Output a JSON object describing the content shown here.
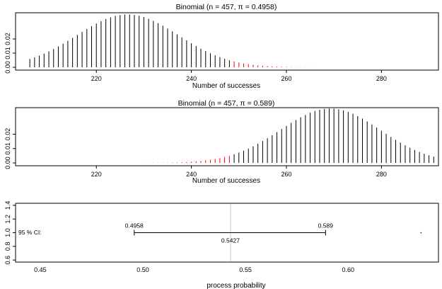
{
  "chart_data": [
    {
      "type": "bar",
      "title": "Binomial (n = 457, π = 0.4958)",
      "n": 457,
      "pi": 0.4958,
      "x_ticks": [
        "220",
        "240",
        "260",
        "280"
      ],
      "x_tick_values": [
        220,
        240,
        260,
        280
      ],
      "y_ticks": [
        "0.00",
        "0.01",
        "0.02"
      ],
      "y_tick_values": [
        0,
        0.01,
        0.02
      ],
      "xlabel": "Number of successes",
      "ylabel": "",
      "xlim": [
        203,
        292
      ],
      "ylim": [
        0,
        0.0385
      ],
      "x_range": [
        206,
        291
      ],
      "highlight_color": "#ff0000",
      "bar_color": "#000000",
      "highlight_rule": "x >= 249"
    },
    {
      "type": "bar",
      "title": "Binomial (n = 457, π = 0.589)",
      "n": 457,
      "pi": 0.589,
      "x_ticks": [
        "220",
        "240",
        "260",
        "280"
      ],
      "x_tick_values": [
        220,
        240,
        260,
        280
      ],
      "y_ticks": [
        "0.00",
        "0.01",
        "0.02"
      ],
      "y_tick_values": [
        0,
        0.01,
        0.02
      ],
      "xlabel": "Number of successes",
      "ylabel": "",
      "xlim": [
        203,
        292
      ],
      "ylim": [
        0,
        0.0385
      ],
      "x_range": [
        206,
        291
      ],
      "highlight_color": "#ff0000",
      "bar_color": "#000000",
      "highlight_rule": "x <= 248"
    },
    {
      "type": "scatter",
      "title": "",
      "row_label": "95 % CI:",
      "ci_lower": 0.4958,
      "ci_upper": 0.589,
      "estimate": 0.5427,
      "lower_label": "0.4958",
      "upper_label": "0.589",
      "estimate_label": "0.5427",
      "stray_point_x": 0.6355,
      "x_ticks": [
        "0.45",
        "0.50",
        "0.55",
        "0.60"
      ],
      "x_tick_values": [
        0.45,
        0.5,
        0.55,
        0.6
      ],
      "y_ticks": [
        "0.6",
        "0.8",
        "1.0",
        "1.2",
        "1.4"
      ],
      "y_tick_values": [
        0.6,
        0.8,
        1.0,
        1.2,
        1.4
      ],
      "xlabel": "process probability",
      "ylabel": "",
      "xlim": [
        0.438,
        0.644
      ],
      "ylim": [
        0.57,
        1.43
      ],
      "estimate_line_color": "#c8c8c8"
    }
  ]
}
